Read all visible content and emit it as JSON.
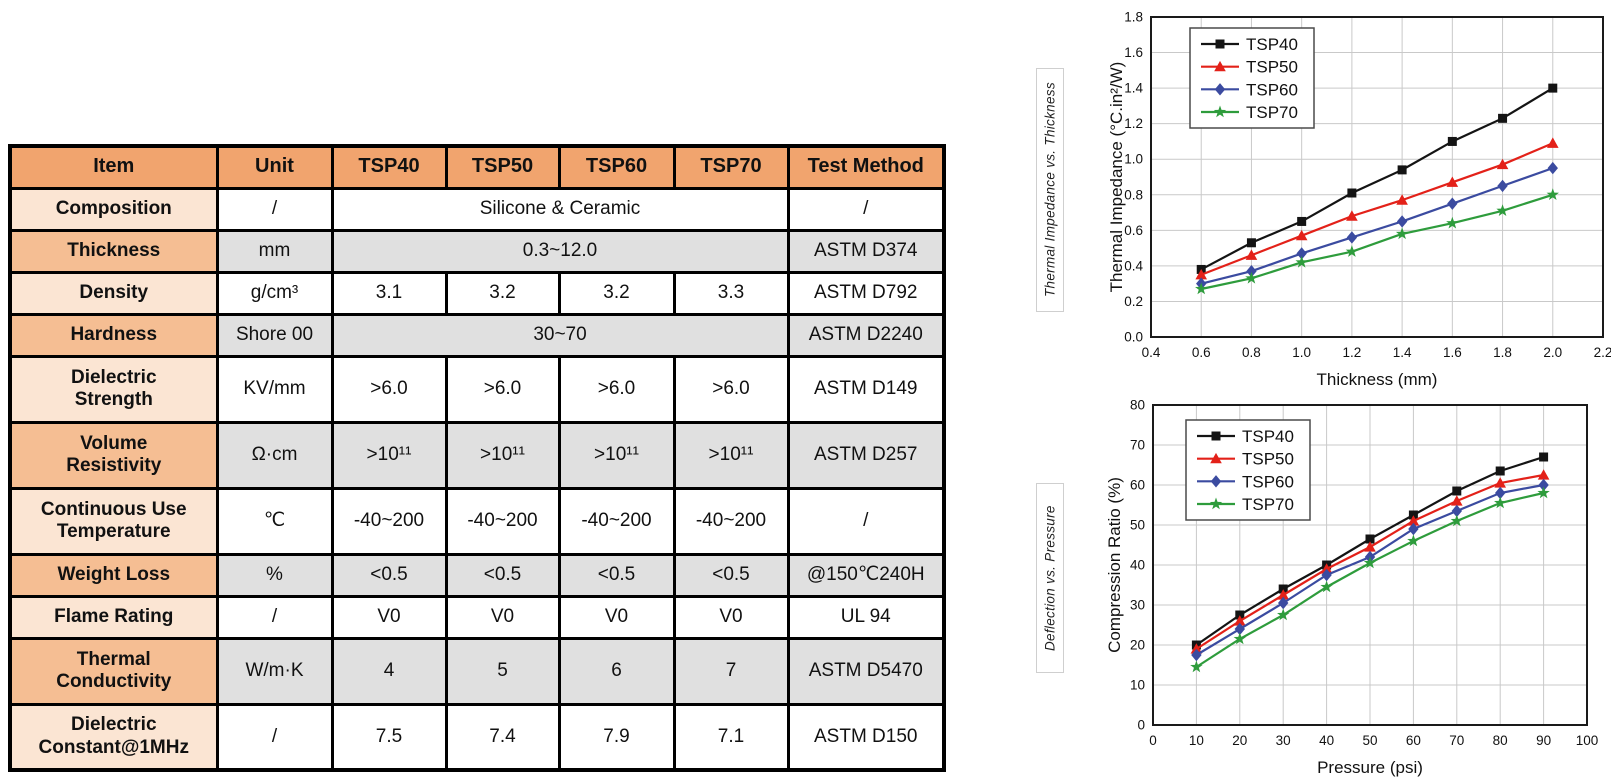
{
  "table": {
    "headers": [
      "Item",
      "Unit",
      "TSP40",
      "TSP50",
      "TSP60",
      "TSP70",
      "Test Method"
    ],
    "rows": [
      {
        "item": "Composition",
        "unit": "/",
        "values": [
          "Silicone & Ceramic"
        ],
        "method": "/"
      },
      {
        "item": "Thickness",
        "unit": "mm",
        "values": [
          "0.3~12.0"
        ],
        "method": "ASTM D374"
      },
      {
        "item": "Density",
        "unit": "g/cm³",
        "values": [
          "3.1",
          "3.2",
          "3.2",
          "3.3"
        ],
        "method": "ASTM D792"
      },
      {
        "item": "Hardness",
        "unit": "Shore 00",
        "values": [
          "30~70"
        ],
        "method": "ASTM D2240"
      },
      {
        "item": "Dielectric\nStrength",
        "unit": "KV/mm",
        "values": [
          ">6.0",
          ">6.0",
          ">6.0",
          ">6.0"
        ],
        "method": "ASTM D149"
      },
      {
        "item": "Volume\nResistivity",
        "unit": "Ω·cm",
        "values": [
          ">10¹¹",
          ">10¹¹",
          ">10¹¹",
          ">10¹¹"
        ],
        "method": "ASTM D257"
      },
      {
        "item": "Continuous Use\nTemperature",
        "unit": "℃",
        "values": [
          "-40~200",
          "-40~200",
          "-40~200",
          "-40~200"
        ],
        "method": "/"
      },
      {
        "item": "Weight Loss",
        "unit": "%",
        "values": [
          "<0.5",
          "<0.5",
          "<0.5",
          "<0.5"
        ],
        "method": "@150℃240H"
      },
      {
        "item": "Flame Rating",
        "unit": "/",
        "values": [
          "V0",
          "V0",
          "V0",
          "V0"
        ],
        "method": "UL 94"
      },
      {
        "item": "Thermal\nConductivity",
        "unit": "W/m·K",
        "values": [
          "4",
          "5",
          "6",
          "7"
        ],
        "method": "ASTM D5470"
      },
      {
        "item": "Dielectric\nConstant@1MHz",
        "unit": "/",
        "values": [
          "7.5",
          "7.4",
          "7.9",
          "7.1"
        ],
        "method": "ASTM D150"
      }
    ]
  },
  "side_labels": {
    "top": "Thermal Impedance vs. Thickness",
    "bottom": "Deflection vs. Pressure"
  },
  "colors": {
    "header_orange": "#F1A46E",
    "item_light": "#FBE5D3",
    "item_dark": "#F5BE93",
    "row_gray": "#E0E0E0",
    "series_black": "#141414",
    "series_red": "#E32119",
    "series_blue": "#3B4BA0",
    "series_green": "#2E9C3C",
    "grid_gray": "#c9c9c9"
  },
  "chart_data": [
    {
      "type": "line",
      "title": "",
      "xlabel": "Thickness (mm)",
      "ylabel": "Thermal Impedance (°C.in²/W)",
      "xlim": [
        0.4,
        2.2
      ],
      "ylim": [
        0.0,
        1.8
      ],
      "xticks": [
        "0.4",
        "0.6",
        "0.8",
        "1.0",
        "1.2",
        "1.4",
        "1.6",
        "1.8",
        "2.0",
        "2.2"
      ],
      "yticks": [
        "0.0",
        "0.2",
        "0.4",
        "0.6",
        "0.8",
        "1.0",
        "1.2",
        "1.4",
        "1.6",
        "1.8"
      ],
      "x": [
        0.6,
        0.8,
        1.0,
        1.2,
        1.4,
        1.6,
        1.8,
        2.0
      ],
      "grid": true,
      "legend_position": "top-left",
      "series": [
        {
          "name": "TSP40",
          "color": "#141414",
          "marker": "square",
          "values": [
            0.38,
            0.53,
            0.65,
            0.81,
            0.94,
            1.1,
            1.23,
            1.4
          ]
        },
        {
          "name": "TSP50",
          "color": "#E32119",
          "marker": "triangle",
          "values": [
            0.35,
            0.46,
            0.57,
            0.68,
            0.77,
            0.87,
            0.97,
            1.09
          ]
        },
        {
          "name": "TSP60",
          "color": "#3B4BA0",
          "marker": "diamond",
          "values": [
            0.3,
            0.37,
            0.47,
            0.56,
            0.65,
            0.75,
            0.85,
            0.95
          ]
        },
        {
          "name": "TSP70",
          "color": "#2E9C3C",
          "marker": "star",
          "values": [
            0.27,
            0.33,
            0.42,
            0.48,
            0.58,
            0.64,
            0.71,
            0.8
          ]
        }
      ]
    },
    {
      "type": "line",
      "title": "",
      "xlabel": "Pressure (psi)",
      "ylabel": "Compression Ratio (%)",
      "xlim": [
        0,
        100
      ],
      "ylim": [
        0,
        80
      ],
      "xticks": [
        "0",
        "10",
        "20",
        "30",
        "40",
        "50",
        "60",
        "70",
        "80",
        "90",
        "100"
      ],
      "yticks": [
        "0",
        "10",
        "20",
        "30",
        "40",
        "50",
        "60",
        "70",
        "80"
      ],
      "x": [
        10,
        20,
        30,
        40,
        50,
        60,
        70,
        80,
        90
      ],
      "grid": true,
      "legend_position": "top-left",
      "series": [
        {
          "name": "TSP40",
          "color": "#141414",
          "marker": "square",
          "values": [
            20,
            27.5,
            34,
            40,
            46.5,
            52.5,
            58.5,
            63.5,
            67
          ]
        },
        {
          "name": "TSP50",
          "color": "#E32119",
          "marker": "triangle",
          "values": [
            19,
            26,
            32.5,
            39,
            44.5,
            51,
            56,
            60.5,
            62.5
          ]
        },
        {
          "name": "TSP60",
          "color": "#3B4BA0",
          "marker": "diamond",
          "values": [
            17.5,
            24,
            30.5,
            37.5,
            42,
            49,
            53.5,
            58,
            60
          ]
        },
        {
          "name": "TSP70",
          "color": "#2E9C3C",
          "marker": "star",
          "values": [
            14.5,
            21.5,
            27.5,
            34.5,
            40.5,
            46,
            51,
            55.5,
            58
          ]
        }
      ]
    }
  ]
}
